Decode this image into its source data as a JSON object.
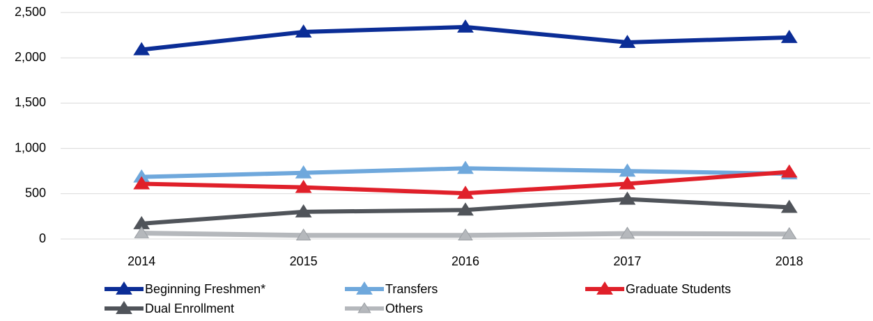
{
  "chart_data": {
    "type": "line",
    "categories": [
      "2014",
      "2015",
      "2016",
      "2017",
      "2018"
    ],
    "series": [
      {
        "name": "Beginning Freshmen*",
        "color": "#0b2d96",
        "values": [
          2090,
          2285,
          2340,
          2170,
          2225
        ]
      },
      {
        "name": "Transfers",
        "color": "#6fa8dc",
        "values": [
          685,
          730,
          780,
          750,
          720
        ]
      },
      {
        "name": "Graduate Students",
        "color": "#e0202a",
        "values": [
          610,
          570,
          505,
          610,
          740
        ]
      },
      {
        "name": "Dual Enrollment",
        "color": "#50545a",
        "values": [
          170,
          300,
          320,
          440,
          350
        ]
      },
      {
        "name": "Others",
        "color": "#b5b8bc",
        "values": [
          65,
          40,
          40,
          60,
          55
        ]
      }
    ],
    "ylim": [
      0,
      2500
    ],
    "yticks": [
      0,
      500,
      {
        "value": 1000,
        "label": "1,000"
      },
      {
        "value": 1500,
        "label": "1,500"
      },
      {
        "value": 2000,
        "label": "2,000"
      },
      {
        "value": 2500,
        "label": "2,500"
      }
    ],
    "grid": true,
    "legend": "bottom"
  }
}
